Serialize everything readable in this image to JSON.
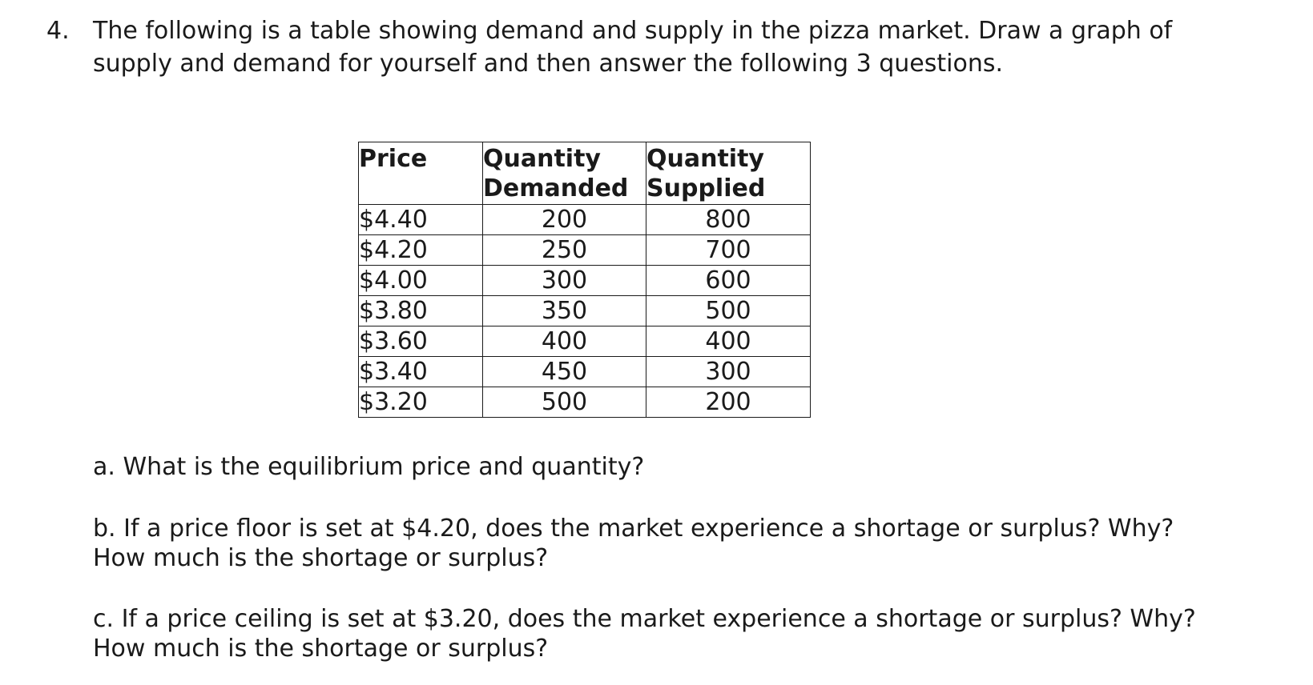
{
  "question": {
    "number": "4.",
    "text_lines": [
      "The following is a table showing demand and supply in the pizza market.  Draw a graph of",
      "supply and demand for yourself and then answer the following 3 questions."
    ]
  },
  "table": {
    "headers": {
      "price": [
        "Price"
      ],
      "quantity_demanded": [
        "Quantity",
        "Demanded"
      ],
      "quantity_supplied": [
        "Quantity",
        "Supplied"
      ]
    },
    "rows": [
      {
        "price": "$4.40",
        "qd": "200",
        "qs": "800"
      },
      {
        "price": "$4.20",
        "qd": "250",
        "qs": "700"
      },
      {
        "price": "$4.00",
        "qd": "300",
        "qs": "600"
      },
      {
        "price": "$3.80",
        "qd": "350",
        "qs": "500"
      },
      {
        "price": "$3.60",
        "qd": "400",
        "qs": "400"
      },
      {
        "price": "$3.40",
        "qd": "450",
        "qs": "300"
      },
      {
        "price": "$3.20",
        "qd": "500",
        "qs": "200"
      }
    ]
  },
  "sub_questions": {
    "a": [
      "a. What is the equilibrium price and quantity?"
    ],
    "b": [
      "b. If a price floor is set at $4.20, does the market experience a shortage or surplus?  Why?",
      "How much is the shortage or surplus?"
    ],
    "c": [
      "c. If a price ceiling is set at $3.20, does the market experience a shortage or surplus?  Why?",
      "How much is the shortage or surplus?"
    ]
  }
}
